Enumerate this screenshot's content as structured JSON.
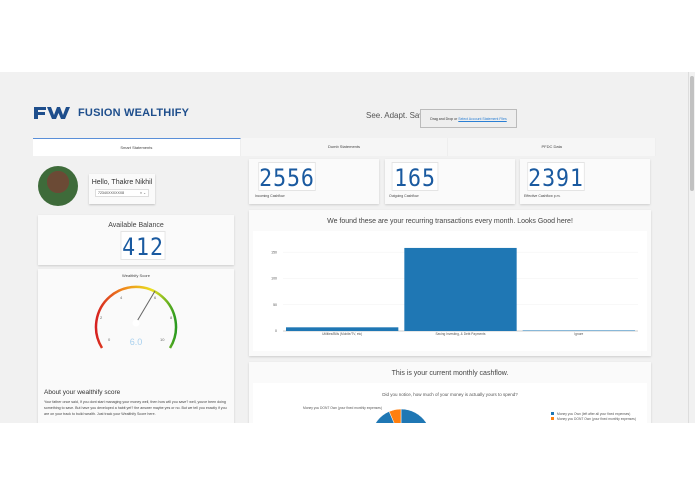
{
  "brand": {
    "name": "FUSION WEALTHIFY",
    "logo_text": "FW",
    "color": "#1e4e8c"
  },
  "header": {
    "tagline": "See. Adapt. Save.",
    "drop_prefix": "Drag and Drop or",
    "drop_link": "Select Account Statement Files"
  },
  "tabs": [
    {
      "label": "Smart Statements",
      "active": true
    },
    {
      "label": "Dumb Statements"
    },
    {
      "label": "PFDC Data"
    }
  ],
  "user": {
    "greeting": "Hello, Thakre Nikhil",
    "account": "7234XXXXXXX8"
  },
  "balance": {
    "label": "Available Balance",
    "value": "412"
  },
  "metrics": [
    {
      "value": "2556",
      "label": "Incoming Cashflow"
    },
    {
      "value": "165",
      "label": "Outgoing Cashflow"
    },
    {
      "value": "2391",
      "label": "Effective Cashflow p.m."
    }
  ],
  "score": {
    "title": "Wealthify Score",
    "value": "6.0",
    "min": 0,
    "max": 10,
    "ticks": [
      "0",
      "2",
      "4",
      "6",
      "8",
      "10"
    ]
  },
  "about": {
    "title": "About your wealthify score",
    "text": "Your father once said, If you dont start managing your money well, then how will you save? well, youve been doing something to save. But have you developed a habit yet? the answer maybe yes or no. But we tell you exactly if you are on your track to build wealth. Just track your Wealthify Score here."
  },
  "chart_data": [
    {
      "type": "bar",
      "title": "We found these are your recurring transactions every month. Looks Good here!",
      "categories": [
        "Utilities/Bills (Mobile/TV, etc)",
        "Saving Investing, & Debt Payments",
        "Ignore"
      ],
      "values": [
        7,
        158,
        1
      ],
      "ylim": [
        0,
        175
      ],
      "yticks": [
        "0",
        "50",
        "100",
        "150"
      ],
      "color": "#1f77b4",
      "grid": true
    },
    {
      "type": "pie",
      "section_title": "This is your current monthly cashflow.",
      "title": "Did you notice, how much of your money is actually yours to spend?",
      "series": [
        {
          "name": "Money you Own (left after all your fixed expenses)",
          "value": 2391,
          "color": "#1f77b4"
        },
        {
          "name": "Money you DONT Own (your fixed monthly expenses)",
          "value": 165,
          "color": "#ff7f0e"
        }
      ],
      "legend": "right"
    }
  ]
}
